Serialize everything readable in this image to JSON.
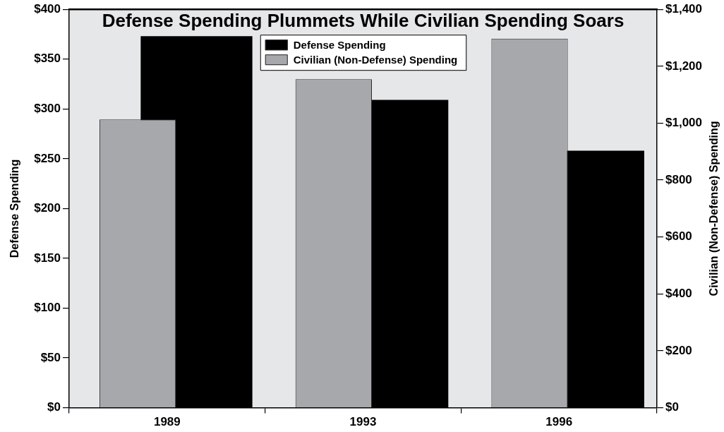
{
  "chart_data": {
    "type": "bar",
    "title": "Defense Spending Plummets While Civilian Spending Soars",
    "ylabel": "Defense Spending",
    "y2label": "Civilian (Non-Defense) Spending",
    "categories": [
      "1989",
      "1993",
      "1996"
    ],
    "series": [
      {
        "name": "Defense Spending",
        "color": "#000000",
        "values": [
          373,
          309,
          258
        ]
      },
      {
        "name": "Civilian (Non-Defense) Spending",
        "color": "#a7a8ab",
        "values": [
          1013,
          1154,
          1297
        ],
        "axis": "y2"
      }
    ],
    "ylim": [
      0,
      400
    ],
    "yticks": [
      {
        "value": 0,
        "label": "$0"
      },
      {
        "value": 50,
        "label": "$50"
      },
      {
        "value": 100,
        "label": "$100"
      },
      {
        "value": 150,
        "label": "$150"
      },
      {
        "value": 200,
        "label": "$200"
      },
      {
        "value": 250,
        "label": "$250"
      },
      {
        "value": 300,
        "label": "$300"
      },
      {
        "value": 350,
        "label": "$350"
      },
      {
        "value": 400,
        "label": "$400"
      }
    ],
    "y2lim": [
      0,
      1400
    ],
    "y2ticks": [
      {
        "value": 0,
        "label": "$0"
      },
      {
        "value": 200,
        "label": "$200"
      },
      {
        "value": 400,
        "label": "$400"
      },
      {
        "value": 600,
        "label": "$600"
      },
      {
        "value": 800,
        "label": "$800"
      },
      {
        "value": 1000,
        "label": "$1,000"
      },
      {
        "value": 1200,
        "label": "$1,200"
      },
      {
        "value": 1400,
        "label": "$1,400"
      }
    ],
    "legend": "top"
  }
}
